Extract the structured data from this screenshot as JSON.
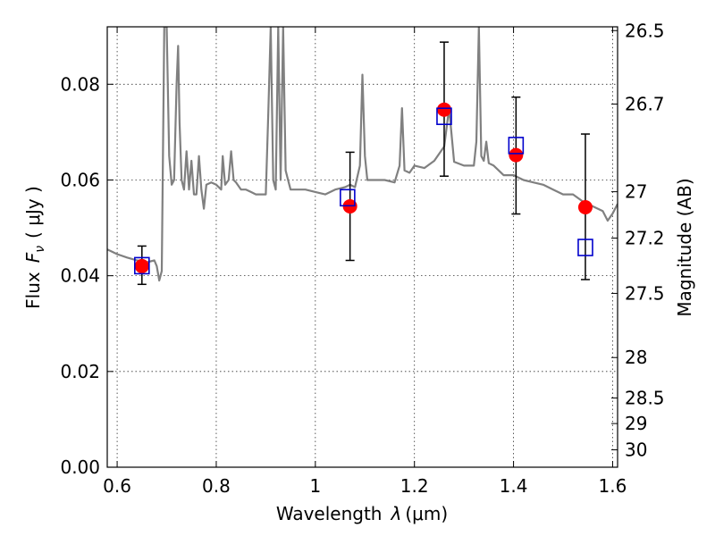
{
  "chart_data": {
    "type": "scatter",
    "xlabel": "Wavelength",
    "xlabel_symbol": "λ",
    "xlabel_unit": "(μm)",
    "ylabel_prefix": "Flux",
    "ylabel_symbol": "F",
    "ylabel_subscript": "ν",
    "ylabel_unit": "( μJy )",
    "y2label": "Magnitude (AB)",
    "xlim": [
      0.58,
      1.61
    ],
    "ylim": [
      0.0,
      0.092
    ],
    "xticks": [
      0.6,
      0.8,
      1.0,
      1.2,
      1.4,
      1.6
    ],
    "xtick_labels": [
      "0.6",
      "0.8",
      "1",
      "1.2",
      "1.4",
      "1.6"
    ],
    "yticks": [
      0.0,
      0.02,
      0.04,
      0.06,
      0.08
    ],
    "ytick_labels": [
      "0.00",
      "0.02",
      "0.04",
      "0.06",
      "0.08"
    ],
    "y2ticks": [
      26.5,
      26.7,
      27.0,
      27.2,
      27.5,
      28.0,
      28.5,
      29.0,
      30.0
    ],
    "y2tick_labels": [
      "26.5",
      "26.7",
      "27",
      "27.2",
      "27.5",
      "28",
      "28.5",
      "29",
      "30"
    ],
    "grid": true,
    "series": [
      {
        "kind": "spectrum",
        "color": "#808080",
        "x": [
          0.58,
          0.6,
          0.62,
          0.64,
          0.66,
          0.675,
          0.68,
          0.685,
          0.69,
          0.695,
          0.7,
          0.705,
          0.71,
          0.715,
          0.72,
          0.723,
          0.726,
          0.73,
          0.735,
          0.74,
          0.745,
          0.75,
          0.755,
          0.76,
          0.765,
          0.77,
          0.775,
          0.78,
          0.79,
          0.8,
          0.81,
          0.813,
          0.818,
          0.825,
          0.83,
          0.835,
          0.84,
          0.85,
          0.86,
          0.87,
          0.88,
          0.89,
          0.9,
          0.905,
          0.91,
          0.915,
          0.92,
          0.925,
          0.93,
          0.935,
          0.94,
          0.945,
          0.95,
          0.96,
          0.98,
          1.0,
          1.02,
          1.04,
          1.06,
          1.07,
          1.08,
          1.09,
          1.095,
          1.1,
          1.105,
          1.11,
          1.12,
          1.14,
          1.16,
          1.17,
          1.175,
          1.18,
          1.19,
          1.2,
          1.22,
          1.24,
          1.26,
          1.27,
          1.28,
          1.3,
          1.32,
          1.325,
          1.33,
          1.335,
          1.34,
          1.345,
          1.35,
          1.36,
          1.37,
          1.38,
          1.4,
          1.42,
          1.44,
          1.46,
          1.48,
          1.5,
          1.52,
          1.54,
          1.56,
          1.58,
          1.59,
          1.6,
          1.61
        ],
        "y": [
          0.0455,
          0.0445,
          0.0438,
          0.0432,
          0.0428,
          0.0432,
          0.042,
          0.039,
          0.041,
          0.092,
          0.092,
          0.065,
          0.059,
          0.06,
          0.08,
          0.088,
          0.072,
          0.06,
          0.058,
          0.066,
          0.058,
          0.064,
          0.057,
          0.057,
          0.065,
          0.058,
          0.054,
          0.059,
          0.0595,
          0.059,
          0.058,
          0.065,
          0.059,
          0.06,
          0.066,
          0.06,
          0.0595,
          0.058,
          0.058,
          0.0575,
          0.057,
          0.057,
          0.057,
          0.074,
          0.092,
          0.06,
          0.058,
          0.092,
          0.06,
          0.092,
          0.062,
          0.06,
          0.058,
          0.058,
          0.058,
          0.0575,
          0.057,
          0.058,
          0.0585,
          0.059,
          0.0585,
          0.063,
          0.082,
          0.065,
          0.06,
          0.06,
          0.06,
          0.06,
          0.0595,
          0.063,
          0.075,
          0.062,
          0.0615,
          0.063,
          0.0625,
          0.064,
          0.067,
          0.075,
          0.0638,
          0.063,
          0.063,
          0.068,
          0.092,
          0.065,
          0.064,
          0.068,
          0.0635,
          0.063,
          0.062,
          0.061,
          0.061,
          0.06,
          0.0595,
          0.059,
          0.058,
          0.057,
          0.057,
          0.0555,
          0.0545,
          0.0535,
          0.0515,
          0.053,
          0.055
        ]
      },
      {
        "kind": "observed",
        "marker": "circle",
        "color": "#ff0000",
        "x": [
          0.65,
          1.07,
          1.26,
          1.405,
          1.545
        ],
        "y": [
          0.042,
          0.0545,
          0.0747,
          0.0652,
          0.0543
        ],
        "yerr_low": [
          0.0382,
          0.0432,
          0.0608,
          0.0529,
          0.0392
        ],
        "yerr_high": [
          0.0462,
          0.0658,
          0.0888,
          0.0773,
          0.0696
        ]
      },
      {
        "kind": "model-photometry",
        "marker": "open-square",
        "color": "#0000cc",
        "x": [
          0.65,
          1.065,
          1.26,
          1.405,
          1.545
        ],
        "y": [
          0.0421,
          0.0563,
          0.0733,
          0.0672,
          0.0459
        ]
      }
    ]
  }
}
